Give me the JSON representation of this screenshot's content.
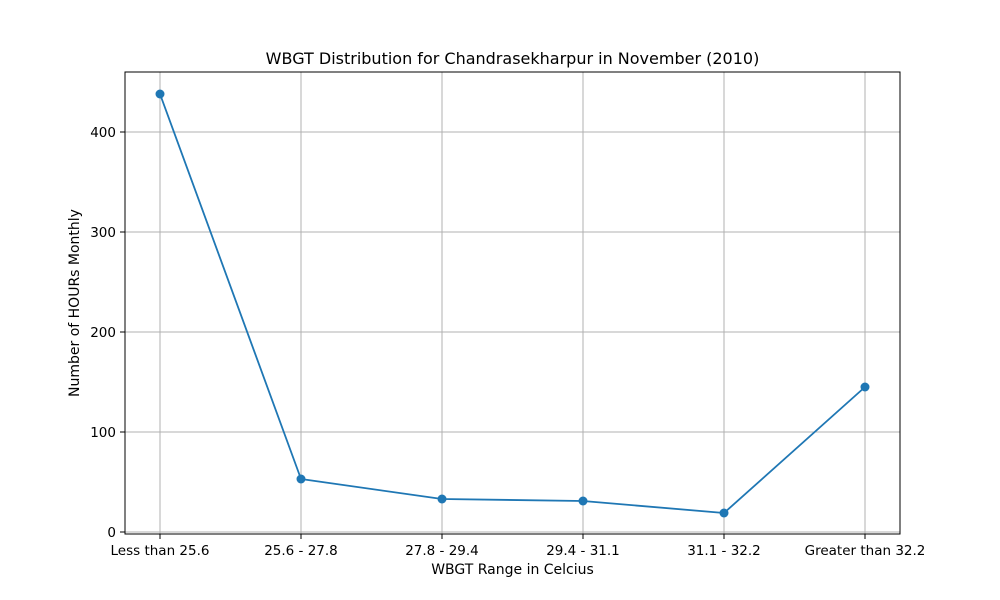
{
  "chart_data": {
    "type": "line",
    "title": "WBGT Distribution for Chandrasekharpur in November (2010)",
    "xlabel": "WBGT Range in Celcius",
    "ylabel": "Number of HOURs Monthly",
    "categories": [
      "Less than 25.6",
      "25.6 - 27.8",
      "27.8 - 29.4",
      "29.4 - 31.1",
      "31.1 - 32.2",
      "Greater than 32.2"
    ],
    "series": [
      {
        "values": [
          438,
          53,
          33,
          31,
          19,
          145
        ],
        "color": "#1f77b4",
        "marker": "circle"
      }
    ],
    "yticks": [
      0,
      100,
      200,
      300,
      400
    ],
    "ylim": [
      -2,
      460
    ],
    "grid": true,
    "legend": "none"
  }
}
